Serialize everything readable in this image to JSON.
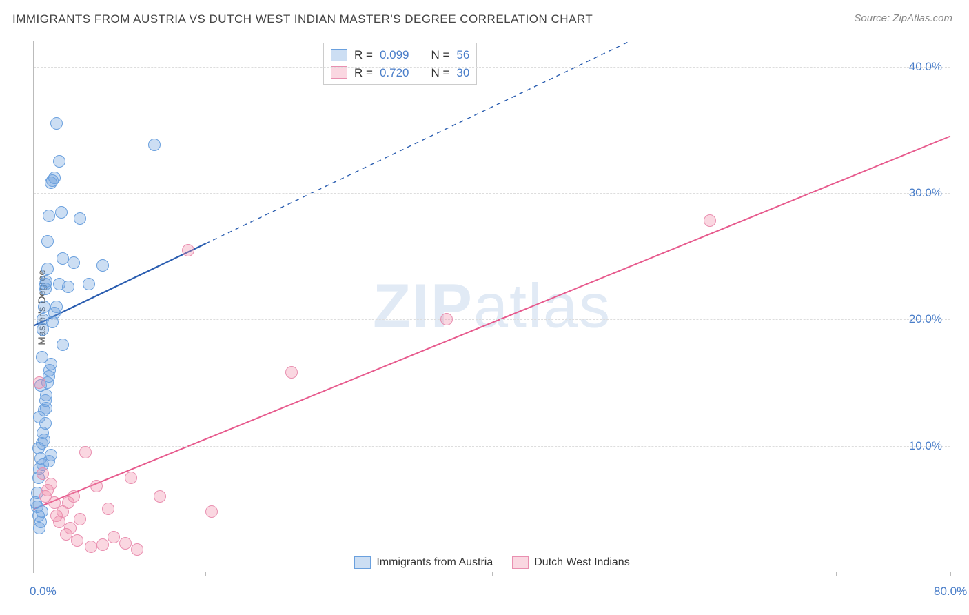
{
  "title": "IMMIGRANTS FROM AUSTRIA VS DUTCH WEST INDIAN MASTER'S DEGREE CORRELATION CHART",
  "source_label": "Source: ",
  "source_name": "ZipAtlas.com",
  "ylabel": "Master's Degree",
  "watermark_a": "ZIP",
  "watermark_b": "atlas",
  "chart": {
    "type": "scatter",
    "xlim": [
      0,
      80
    ],
    "ylim": [
      0,
      42
    ],
    "x_ticks": [
      0,
      15,
      30,
      40,
      55,
      70,
      80
    ],
    "x_tick_labels": {
      "0": "0.0%",
      "80": "80.0%"
    },
    "y_gridlines": [
      10,
      20,
      30,
      40
    ],
    "y_tick_labels": {
      "10": "10.0%",
      "20": "20.0%",
      "30": "30.0%",
      "40": "40.0%"
    },
    "background_color": "#ffffff",
    "grid_color": "#dddddd",
    "axis_color": "#bbbbbb",
    "tick_label_color": "#4a7ec9",
    "marker_radius": 9,
    "series": [
      {
        "name": "Immigrants from Austria",
        "color_fill": "rgba(110,160,220,0.35)",
        "color_stroke": "#6aa0de",
        "line_color": "#2a5db0",
        "line_width": 2.2,
        "regression": {
          "solid_from": [
            0,
            19.5
          ],
          "solid_to": [
            15,
            26
          ],
          "dash_to": [
            52,
            42
          ]
        },
        "stats": {
          "R": "0.099",
          "N": "56"
        },
        "points": [
          [
            0.3,
            5.2
          ],
          [
            0.4,
            9.8
          ],
          [
            0.5,
            12.3
          ],
          [
            0.6,
            14.8
          ],
          [
            0.7,
            17.0
          ],
          [
            0.8,
            19.2
          ],
          [
            0.8,
            20.0
          ],
          [
            0.9,
            21.0
          ],
          [
            1.0,
            22.4
          ],
          [
            1.0,
            22.8
          ],
          [
            1.1,
            23.0
          ],
          [
            1.2,
            24.0
          ],
          [
            1.2,
            26.2
          ],
          [
            1.3,
            28.2
          ],
          [
            1.5,
            30.8
          ],
          [
            1.6,
            31.0
          ],
          [
            1.8,
            31.2
          ],
          [
            2.0,
            35.5
          ],
          [
            2.2,
            32.5
          ],
          [
            2.4,
            28.5
          ],
          [
            2.5,
            18.0
          ],
          [
            0.4,
            7.5
          ],
          [
            0.5,
            8.2
          ],
          [
            0.6,
            9.0
          ],
          [
            0.7,
            10.2
          ],
          [
            0.8,
            11.0
          ],
          [
            0.9,
            12.8
          ],
          [
            1.0,
            13.6
          ],
          [
            1.1,
            14.0
          ],
          [
            1.2,
            15.0
          ],
          [
            1.3,
            15.5
          ],
          [
            1.4,
            16.0
          ],
          [
            1.5,
            16.5
          ],
          [
            1.6,
            19.8
          ],
          [
            1.8,
            20.5
          ],
          [
            2.0,
            21.0
          ],
          [
            2.2,
            22.8
          ],
          [
            2.5,
            24.8
          ],
          [
            3.0,
            22.6
          ],
          [
            3.5,
            24.5
          ],
          [
            4.0,
            28.0
          ],
          [
            4.8,
            22.8
          ],
          [
            6.0,
            24.3
          ],
          [
            10.5,
            33.8
          ],
          [
            0.2,
            5.5
          ],
          [
            0.3,
            6.3
          ],
          [
            0.4,
            4.5
          ],
          [
            0.5,
            3.5
          ],
          [
            0.6,
            4.0
          ],
          [
            0.7,
            4.8
          ],
          [
            0.8,
            8.5
          ],
          [
            0.9,
            10.5
          ],
          [
            1.0,
            11.8
          ],
          [
            1.1,
            13.0
          ],
          [
            1.3,
            8.8
          ],
          [
            1.5,
            9.3
          ]
        ]
      },
      {
        "name": "Dutch West Indians",
        "color_fill": "rgba(240,140,170,0.35)",
        "color_stroke": "#e98fb0",
        "line_color": "#e75a8d",
        "line_width": 2.0,
        "regression": {
          "solid_from": [
            0,
            5.0
          ],
          "solid_to": [
            80,
            34.5
          ],
          "dash_to": null
        },
        "stats": {
          "R": "0.720",
          "N": "30"
        },
        "points": [
          [
            0.5,
            15.0
          ],
          [
            0.8,
            7.8
          ],
          [
            1.0,
            6.0
          ],
          [
            1.2,
            6.5
          ],
          [
            1.5,
            7.0
          ],
          [
            1.8,
            5.5
          ],
          [
            2.0,
            4.5
          ],
          [
            2.2,
            4.0
          ],
          [
            2.5,
            4.8
          ],
          [
            2.8,
            3.0
          ],
          [
            3.0,
            5.5
          ],
          [
            3.2,
            3.5
          ],
          [
            3.5,
            6.0
          ],
          [
            3.8,
            2.5
          ],
          [
            4.0,
            4.2
          ],
          [
            4.5,
            9.5
          ],
          [
            5.0,
            2.0
          ],
          [
            5.5,
            6.8
          ],
          [
            6.0,
            2.2
          ],
          [
            6.5,
            5.0
          ],
          [
            7.0,
            2.8
          ],
          [
            8.0,
            2.3
          ],
          [
            8.5,
            7.5
          ],
          [
            9.0,
            1.8
          ],
          [
            11.0,
            6.0
          ],
          [
            13.5,
            25.5
          ],
          [
            15.5,
            4.8
          ],
          [
            22.5,
            15.8
          ],
          [
            36.0,
            20.0
          ],
          [
            59.0,
            27.8
          ]
        ]
      }
    ]
  },
  "stats_box": {
    "rows": [
      {
        "swatch_fill": "rgba(110,160,220,0.35)",
        "swatch_stroke": "#6aa0de",
        "R_label": "R = ",
        "R": "0.099",
        "N_label": "N = ",
        "N": "56"
      },
      {
        "swatch_fill": "rgba(240,140,170,0.35)",
        "swatch_stroke": "#e98fb0",
        "R_label": "R = ",
        "R": "0.720",
        "N_label": "N = ",
        "N": "30"
      }
    ]
  },
  "bottom_legend": [
    {
      "swatch_fill": "rgba(110,160,220,0.35)",
      "swatch_stroke": "#6aa0de",
      "label": "Immigrants from Austria"
    },
    {
      "swatch_fill": "rgba(240,140,170,0.35)",
      "swatch_stroke": "#e98fb0",
      "label": "Dutch West Indians"
    }
  ]
}
